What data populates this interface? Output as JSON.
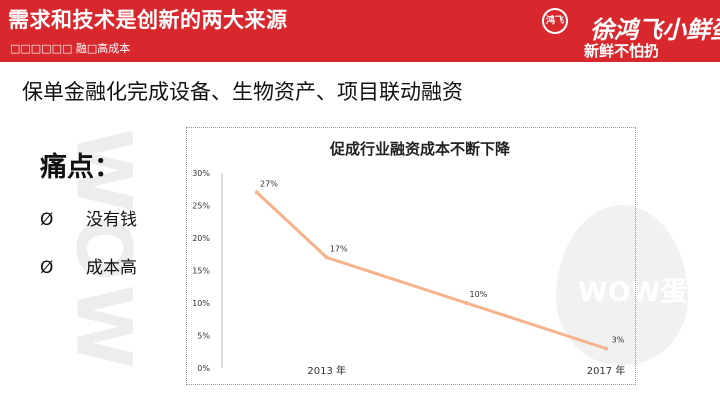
{
  "header": {
    "title": "需求和技术是创新的两大来源",
    "subtitle": "□□□□□□ 融□高成本",
    "logo_name": "徐鸿飞小鲜蛋",
    "logo_badge": "鸿飞",
    "logo_slogan": "新鲜不怕扔",
    "background_color": "#d9282d"
  },
  "heading": "保单金融化完成设备、生物资产、项目联动融资",
  "pain_points": {
    "title": "痛点：",
    "items": [
      {
        "marker": "Ø",
        "text": "没有钱"
      },
      {
        "marker": "Ø",
        "text": "成本高"
      }
    ]
  },
  "watermarks": {
    "side": "WOW",
    "egg": "WOW蛋"
  },
  "chart_data": {
    "type": "line",
    "title": "促成行业融资成本不断下降",
    "x": [
      2012,
      2013,
      2015,
      2017
    ],
    "x_tick_labels": [
      "2013 年",
      "2017 年"
    ],
    "x_tick_values": [
      2013,
      2017
    ],
    "values": [
      27,
      17,
      10,
      3
    ],
    "data_labels": [
      "27%",
      "17%",
      "10%",
      "3%"
    ],
    "y_ticks": [
      "30%",
      "25%",
      "20%",
      "15%",
      "10%",
      "5%",
      "0%"
    ],
    "ylim": [
      0,
      30
    ],
    "xlim": [
      2011.5,
      2017.2
    ],
    "line_color": "#f6b28a",
    "grid": false,
    "legend": "none"
  }
}
